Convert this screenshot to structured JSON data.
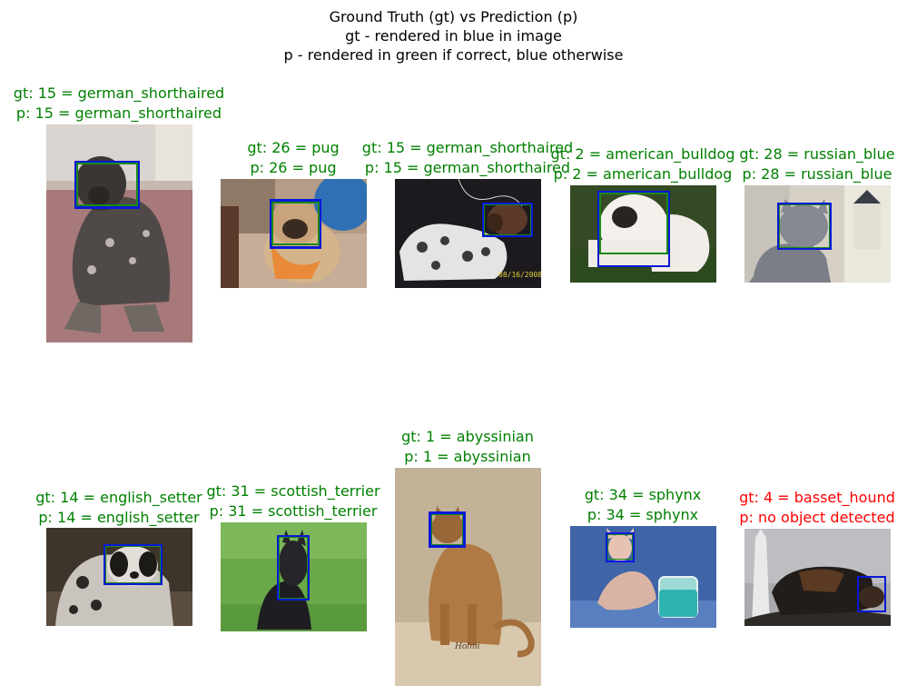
{
  "figure": {
    "title_lines": [
      "Ground Truth (gt) vs Prediction (p)",
      "gt - rendered in blue in image",
      "p - rendered in green if correct, blue otherwise"
    ]
  },
  "colors": {
    "correct": "#008000",
    "wrong": "#ff0000",
    "gt_box": "#0a18d8",
    "pred_box": "#1a8a1a"
  },
  "panels": [
    {
      "gt_label": "gt: 15 = german_shorthaired",
      "p_label": "p: 15 = german_shorthaired",
      "correct": true
    },
    {
      "gt_label": "gt: 26 = pug",
      "p_label": "p: 26 = pug",
      "correct": true
    },
    {
      "gt_label": "gt: 15 = german_shorthaired",
      "p_label": "p: 15 = german_shorthaired",
      "correct": true
    },
    {
      "gt_label": "gt: 2 = american_bulldog",
      "p_label": "p: 2 = american_bulldog",
      "correct": true
    },
    {
      "gt_label": "gt: 28 = russian_blue",
      "p_label": "p: 28 = russian_blue",
      "correct": true
    },
    {
      "gt_label": "gt: 14 = english_setter",
      "p_label": "p: 14 = english_setter",
      "correct": true
    },
    {
      "gt_label": "gt: 31 = scottish_terrier",
      "p_label": "p: 31 = scottish_terrier",
      "correct": true
    },
    {
      "gt_label": "gt: 1 = abyssinian",
      "p_label": "p: 1 = abyssinian",
      "correct": true
    },
    {
      "gt_label": "gt: 34 = sphynx",
      "p_label": "p: 34 = sphynx",
      "correct": true
    },
    {
      "gt_label": "gt: 4 = basset_hound",
      "p_label": "p: no object detected",
      "correct": false
    }
  ],
  "photo_watermarks": {
    "date_stamp": "08/16/2008",
    "signature": "Holmi"
  }
}
